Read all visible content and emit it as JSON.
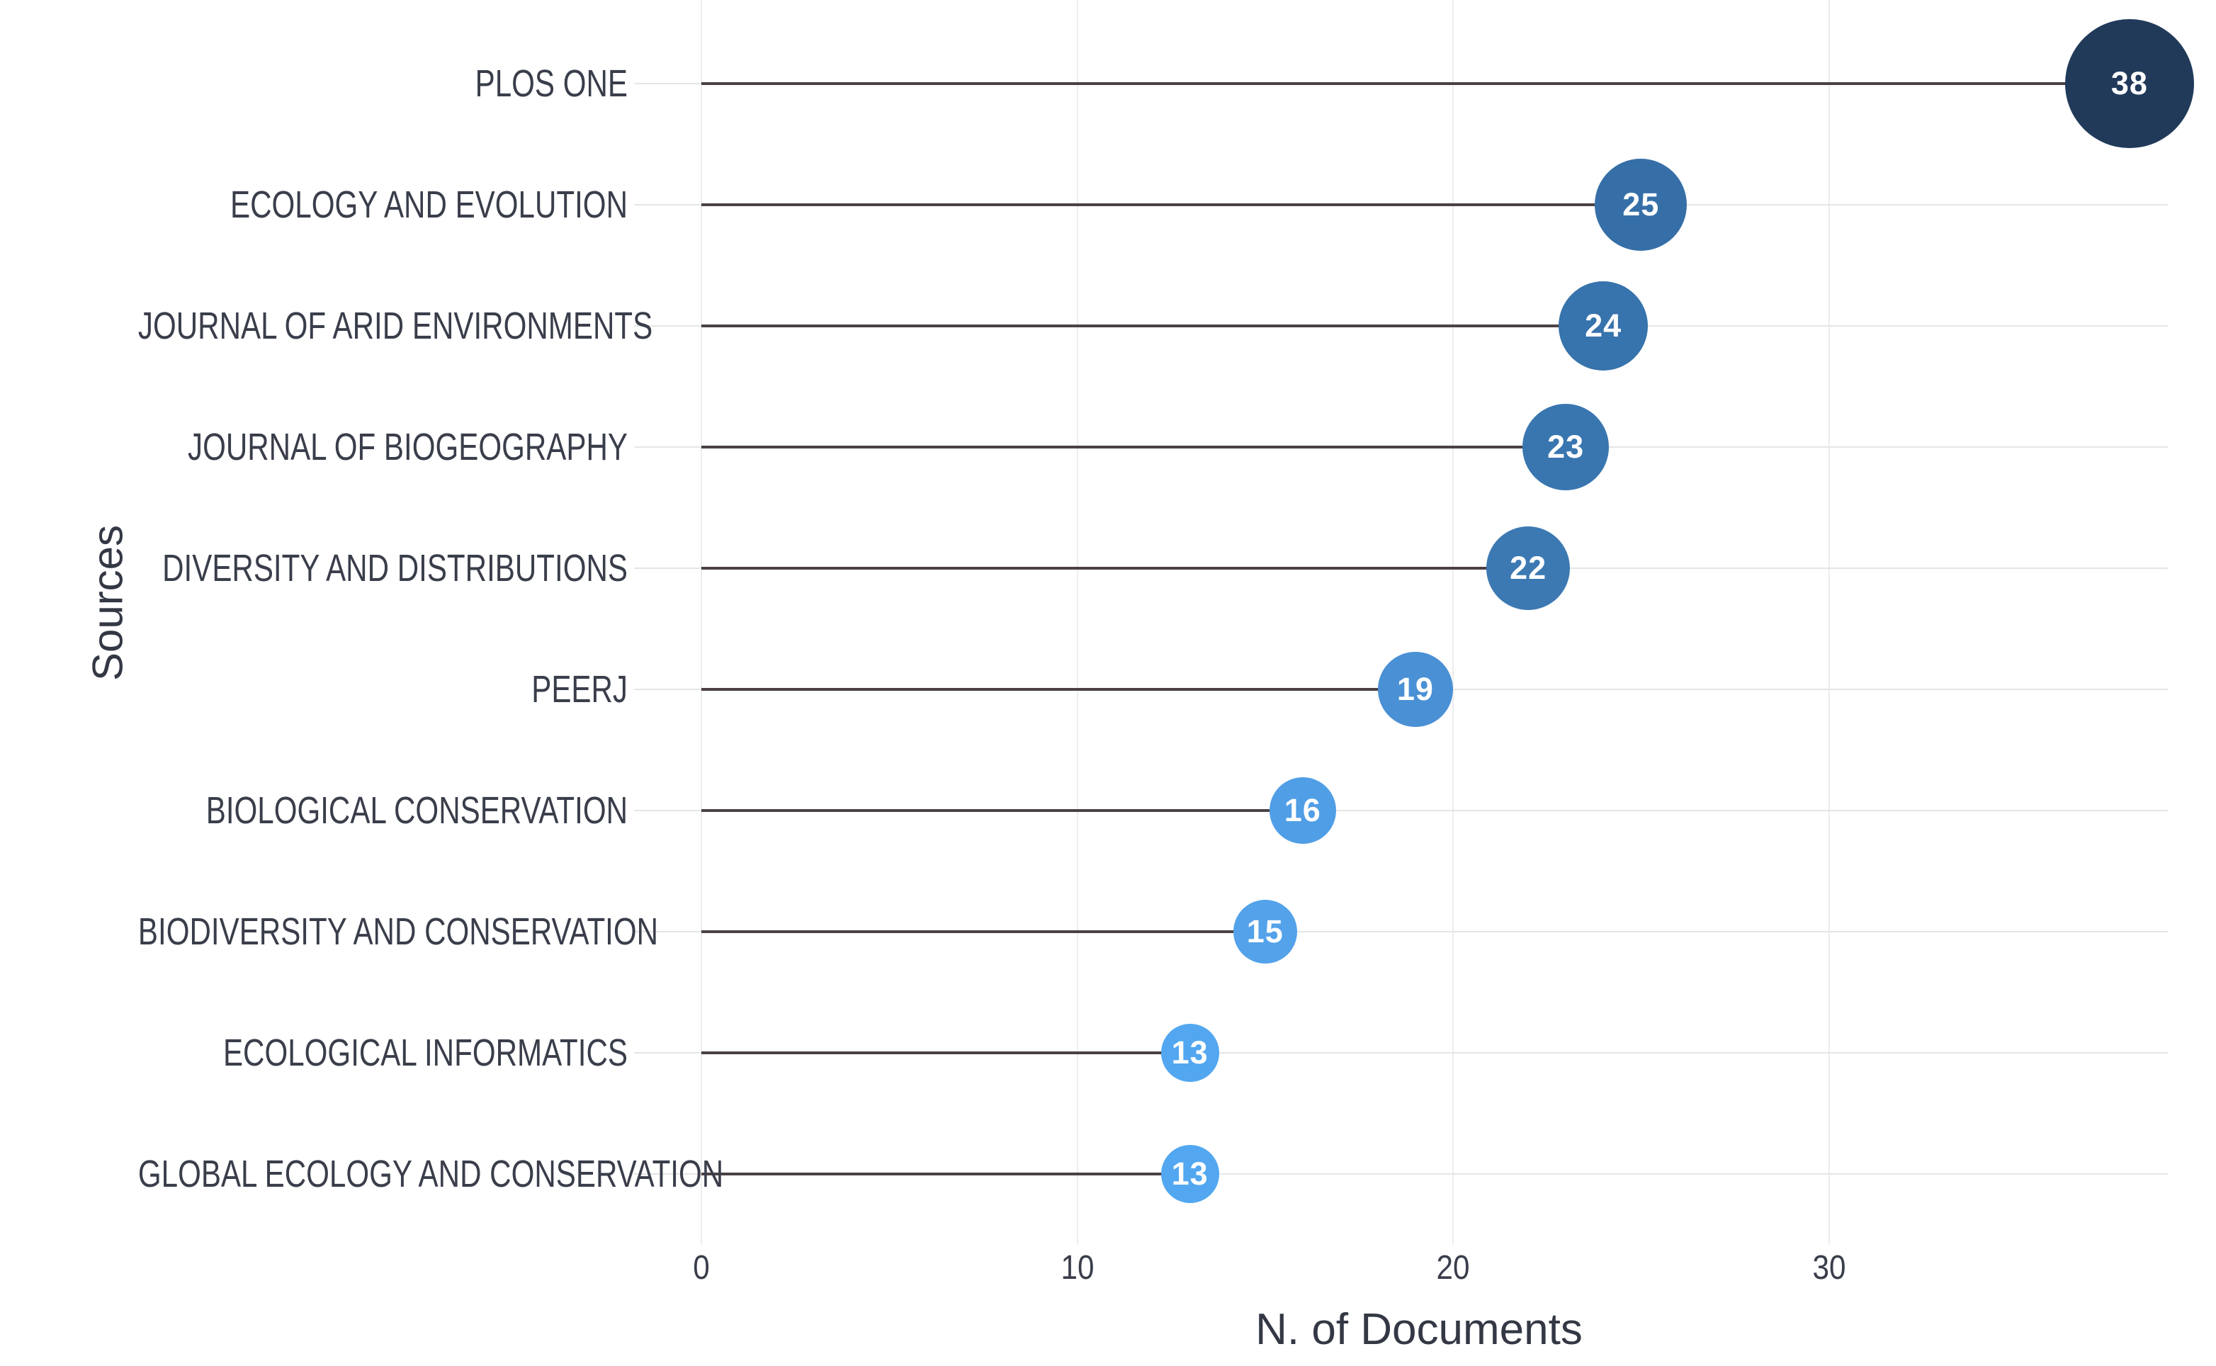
{
  "chart_data": {
    "type": "lollipop",
    "title": "",
    "xlabel": "N. of Documents",
    "ylabel": "Sources",
    "categories": [
      "PLOS ONE",
      "ECOLOGY AND EVOLUTION",
      "JOURNAL OF ARID ENVIRONMENTS",
      "JOURNAL OF BIOGEOGRAPHY",
      "DIVERSITY AND DISTRIBUTIONS",
      "PEERJ",
      "BIOLOGICAL CONSERVATION",
      "BIODIVERSITY AND CONSERVATION",
      "ECOLOGICAL INFORMATICS",
      "GLOBAL ECOLOGY AND CONSERVATION"
    ],
    "values": [
      38,
      25,
      24,
      23,
      22,
      19,
      16,
      15,
      13,
      13
    ],
    "x_ticks": [
      0,
      10,
      20,
      30
    ],
    "xlim": [
      0,
      40
    ],
    "legend": "none",
    "grid": "vertical-major",
    "point_colors": [
      "#213a5a",
      "#366fa7",
      "#3773ac",
      "#3976b0",
      "#3c79b3",
      "#4a90d5",
      "#509ee6",
      "#53a2ea",
      "#52a7f0",
      "#52a7f0"
    ],
    "stem_color": "#4b4144",
    "row_line_color": "#e5e5e5",
    "grid_color": "#ededed",
    "label_color": "#3a3e4b",
    "bubble_text_color": "#ffffff"
  }
}
